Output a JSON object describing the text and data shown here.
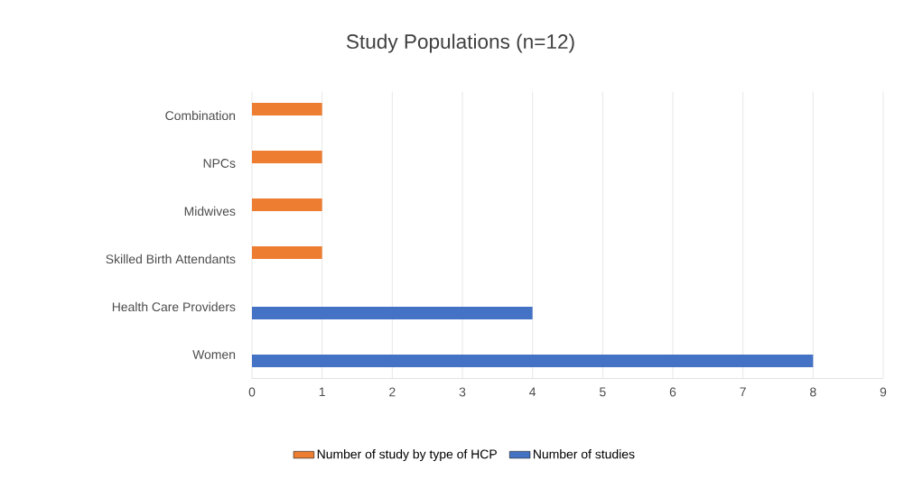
{
  "chart_data": {
    "type": "bar",
    "orientation": "horizontal",
    "title": "Study Populations (n=12)",
    "categories": [
      "Combination",
      "NPCs",
      "Midwives",
      "Skilled Birth Attendants",
      "Health Care Providers",
      "Women"
    ],
    "series": [
      {
        "name": "Number of study by type of HCP",
        "color": "#ed7d31",
        "values": [
          1,
          1,
          1,
          1,
          null,
          null
        ]
      },
      {
        "name": "Number of studies",
        "color": "#4472c4",
        "values": [
          null,
          null,
          null,
          null,
          4,
          8
        ]
      }
    ],
    "xlim": [
      0,
      9
    ],
    "xticks": [
      0,
      1,
      2,
      3,
      4,
      5,
      6,
      7,
      8,
      9
    ],
    "grid": "x",
    "legend": "bottom"
  }
}
